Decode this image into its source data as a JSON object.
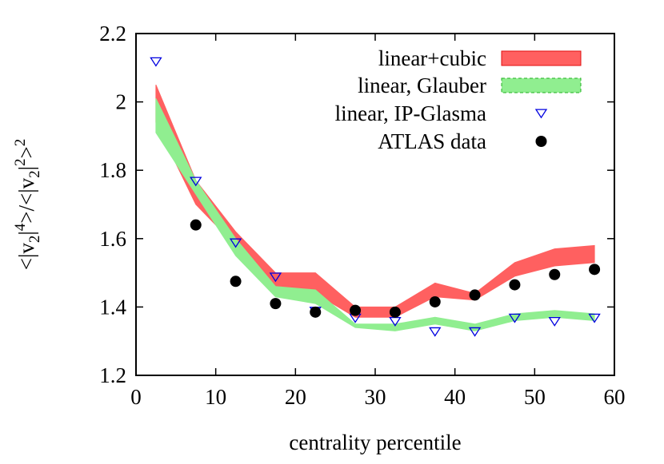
{
  "chart_data": {
    "type": "line",
    "xlabel": "centrality percentile",
    "ylabel": "<|v2|4>/<|v2|2>2",
    "xlim": [
      0,
      60
    ],
    "ylim": [
      1.2,
      2.2
    ],
    "xticks": [
      "0",
      "10",
      "20",
      "30",
      "40",
      "50",
      "60"
    ],
    "yticks": [
      "1.2",
      "1.4",
      "1.6",
      "1.8",
      "2",
      "2.2"
    ],
    "legend_position": "top-right",
    "grid": false,
    "series": [
      {
        "name": "linear+cubic",
        "style": "band",
        "fill": "#ff6060",
        "stroke": "#e01010",
        "x": [
          2.5,
          7.5,
          12.5,
          17.5,
          22.5,
          27.5,
          32.5,
          37.5,
          42.5,
          47.5,
          52.5,
          57.5
        ],
        "lower": [
          1.94,
          1.7,
          1.58,
          1.46,
          1.44,
          1.37,
          1.37,
          1.43,
          1.42,
          1.49,
          1.52,
          1.53
        ],
        "upper": [
          2.05,
          1.77,
          1.62,
          1.5,
          1.5,
          1.4,
          1.4,
          1.47,
          1.44,
          1.53,
          1.57,
          1.58
        ]
      },
      {
        "name": "linear, Glauber",
        "style": "band",
        "fill": "#90ee90",
        "stroke": "#20b020",
        "x": [
          2.5,
          7.5,
          12.5,
          17.5,
          22.5,
          27.5,
          32.5,
          37.5,
          42.5,
          47.5,
          52.5,
          57.5
        ],
        "lower": [
          1.91,
          1.73,
          1.55,
          1.43,
          1.41,
          1.34,
          1.33,
          1.35,
          1.33,
          1.36,
          1.37,
          1.36
        ],
        "upper": [
          2.01,
          1.77,
          1.6,
          1.46,
          1.45,
          1.35,
          1.35,
          1.37,
          1.35,
          1.38,
          1.39,
          1.38
        ]
      },
      {
        "name": "linear, IP-Glasma",
        "style": "marker-triangle-down",
        "color": "#0000e0",
        "x": [
          2.5,
          7.5,
          12.5,
          17.5,
          22.5,
          27.5,
          32.5,
          37.5,
          42.5,
          47.5,
          52.5,
          57.5
        ],
        "values": [
          2.12,
          1.77,
          1.59,
          1.49,
          1.39,
          1.37,
          1.36,
          1.33,
          1.33,
          1.37,
          1.36,
          1.37
        ]
      },
      {
        "name": "ATLAS data",
        "style": "marker-circle",
        "color": "#000000",
        "x": [
          7.5,
          12.5,
          17.5,
          22.5,
          27.5,
          32.5,
          37.5,
          42.5,
          47.5,
          52.5,
          57.5
        ],
        "values": [
          1.64,
          1.475,
          1.41,
          1.385,
          1.39,
          1.385,
          1.415,
          1.435,
          1.465,
          1.495,
          1.51
        ]
      }
    ]
  }
}
